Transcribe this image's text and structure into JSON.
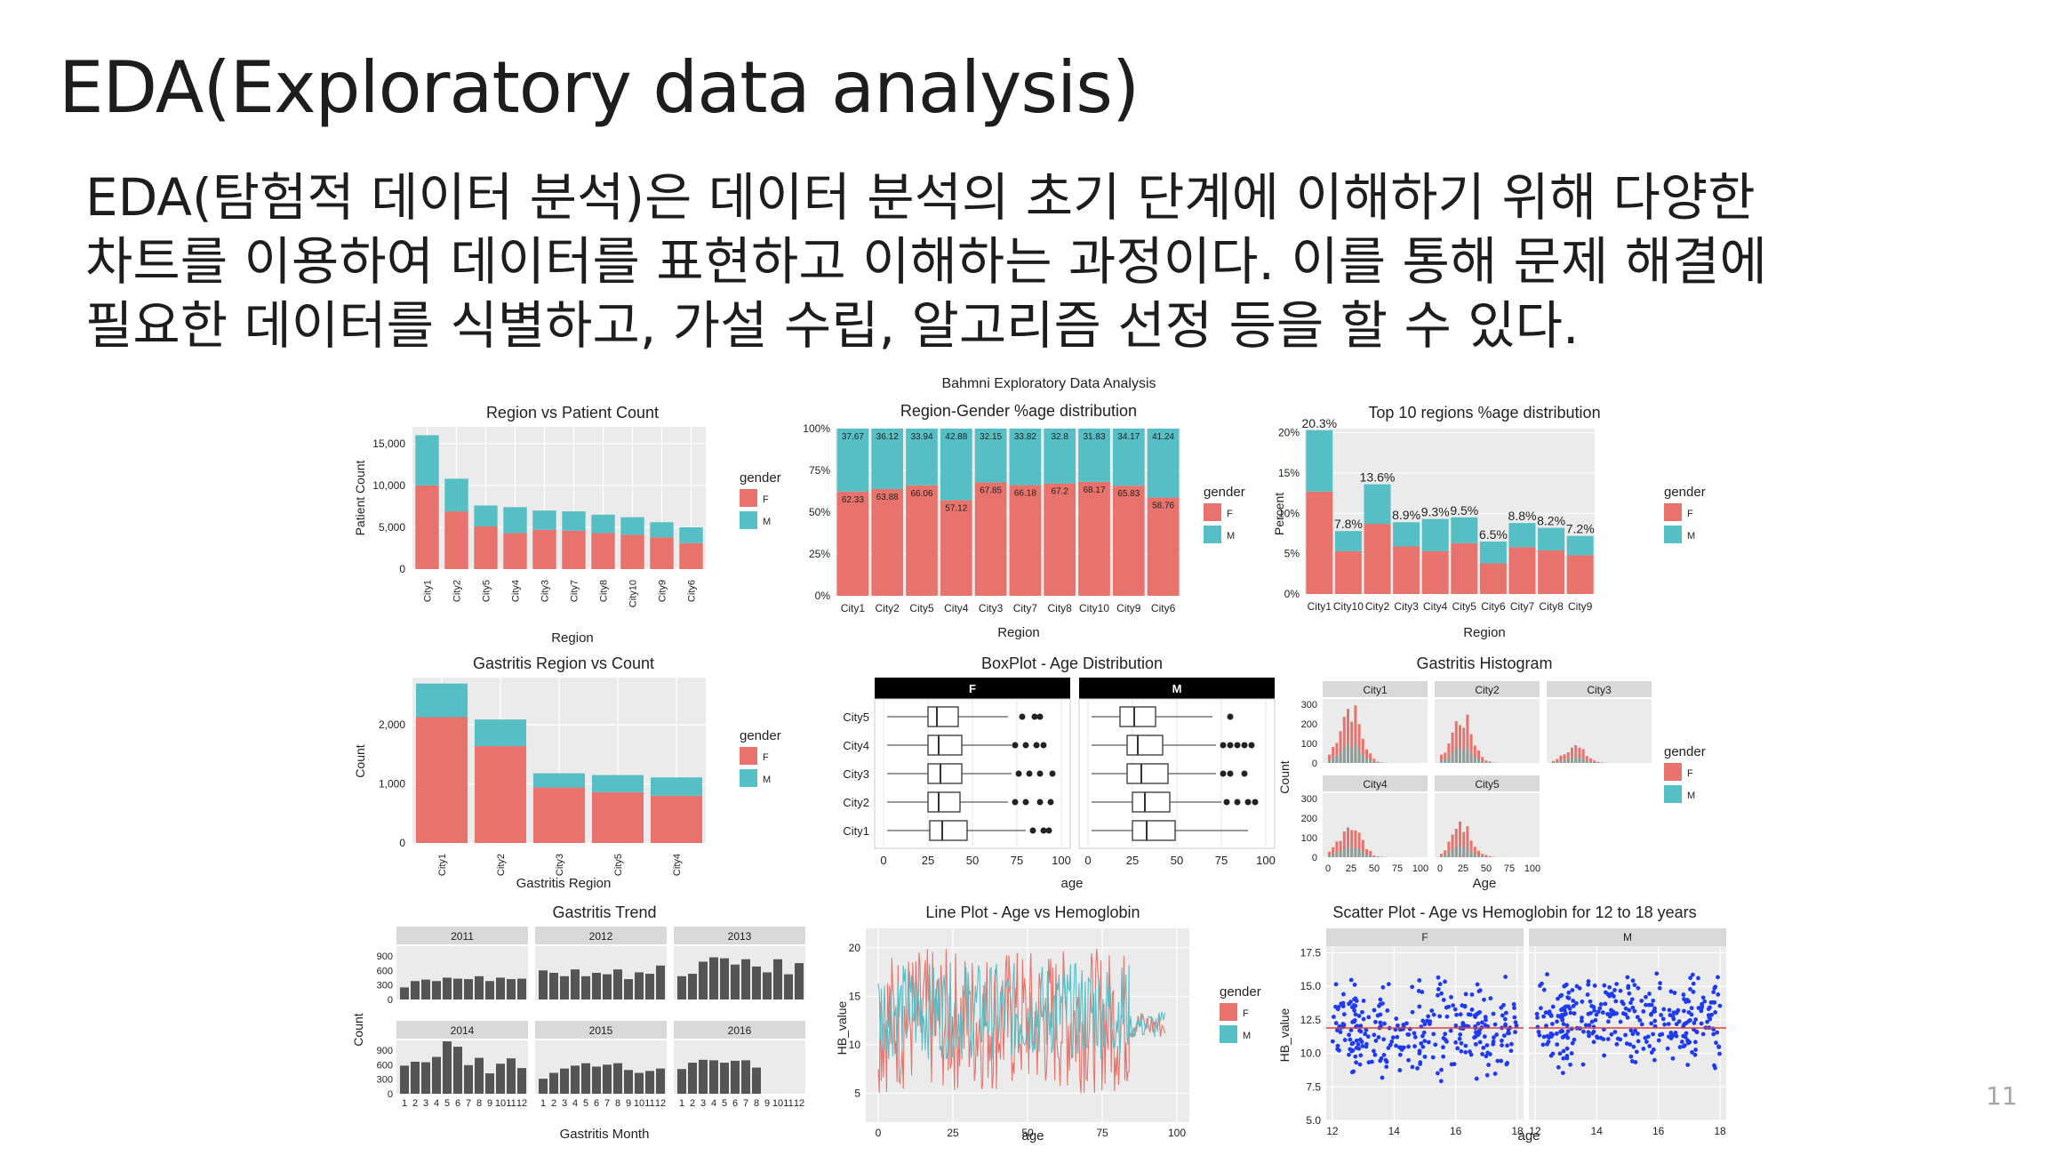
{
  "slide": {
    "title": "EDA(Exploratory data analysis)",
    "body_lines": [
      "EDA(탐험적 데이터 분석)은 데이터 분석의 초기 단계에 이해하기 위해 다양한",
      "차트를 이용하여 데이터를 표현하고 이해하는 과정이다. 이를 통해 문제 해결에",
      "필요한 데이터를 식별하고, 가설 수립, 알고리즘 선정 등을 할 수 있다."
    ],
    "page_number": "11"
  },
  "colors": {
    "F": "#E8736C",
    "M": "#56BFC5",
    "panel": "#EBEBEB",
    "dark_bar": "#555555",
    "scatter": "#1F3BF0",
    "ref_line": "#E04040"
  },
  "figure_header": "Bahmni Exploratory Data Analysis",
  "chart_data": [
    {
      "type": "bar",
      "stacked": true,
      "title": "Region vs Patient Count",
      "xlabel": "Region",
      "ylabel": "Patient Count",
      "categories": [
        "City1",
        "City2",
        "City5",
        "City4",
        "City3",
        "City7",
        "City8",
        "City10",
        "City9",
        "City6"
      ],
      "series": [
        {
          "name": "F",
          "values": [
            10000,
            6900,
            5100,
            4300,
            4700,
            4600,
            4300,
            4100,
            3800,
            3100
          ]
        },
        {
          "name": "M",
          "values": [
            6000,
            3900,
            2500,
            3100,
            2300,
            2300,
            2200,
            2100,
            1800,
            1900
          ]
        }
      ],
      "yticks": [
        "0",
        "5,000",
        "10,000",
        "15,000"
      ],
      "ytick_values": [
        0,
        5000,
        10000,
        15000
      ],
      "ylim": [
        0,
        17000
      ],
      "legend_title": "gender",
      "legend": [
        "F",
        "M"
      ]
    },
    {
      "type": "bar",
      "stacked": true,
      "percent": true,
      "title": "Region-Gender %age distribution",
      "xlabel": "Region",
      "categories": [
        "City1",
        "City2",
        "City5",
        "City4",
        "City3",
        "City7",
        "City8",
        "City10",
        "City9",
        "City6"
      ],
      "series": [
        {
          "name": "F",
          "values": [
            62.33,
            63.88,
            66.06,
            57.12,
            67.85,
            66.18,
            67.2,
            68.17,
            65.83,
            58.76
          ]
        },
        {
          "name": "M",
          "values": [
            37.67,
            36.12,
            33.94,
            42.88,
            32.15,
            33.82,
            32.8,
            31.83,
            34.17,
            41.24
          ]
        }
      ],
      "f_labels": [
        "62.33",
        "63.88",
        "66.06",
        "57.12",
        "67.85",
        "66.18",
        "67.2",
        "68.17",
        "65.83",
        "58.76"
      ],
      "m_labels": [
        "37.67",
        "36.12",
        "33.94",
        "42.88",
        "32.15",
        "33.82",
        "32.8",
        "31.83",
        "34.17",
        "41.24"
      ],
      "yticks": [
        "0%",
        "25%",
        "50%",
        "75%",
        "100%"
      ],
      "ylim": [
        0,
        100
      ],
      "legend_title": "gender",
      "legend": [
        "F",
        "M"
      ]
    },
    {
      "type": "bar",
      "stacked": true,
      "title": "Top 10 regions %age distribution",
      "xlabel": "Region",
      "ylabel": "Percent",
      "categories": [
        "City1",
        "City10",
        "City2",
        "City3",
        "City4",
        "City5",
        "City6",
        "City7",
        "City8",
        "City9"
      ],
      "series": [
        {
          "name": "F",
          "values": [
            12.7,
            5.3,
            8.7,
            5.9,
            5.3,
            6.3,
            3.8,
            5.8,
            5.4,
            4.8
          ]
        },
        {
          "name": "M",
          "values": [
            7.6,
            2.5,
            4.9,
            3.0,
            4.0,
            3.2,
            2.7,
            3.0,
            2.8,
            2.4
          ]
        }
      ],
      "bar_labels": [
        "20.3%",
        "7.8%",
        "13.6%",
        "8.9%",
        "9.3%",
        "9.5%",
        "6.5%",
        "8.8%",
        "8.2%",
        "7.2%"
      ],
      "yticks": [
        "0%",
        "5%",
        "10%",
        "15%",
        "20%"
      ],
      "ylim": [
        0,
        20
      ],
      "legend_title": "gender",
      "legend": [
        "F",
        "M"
      ]
    },
    {
      "type": "bar",
      "stacked": true,
      "title": "Gastritis Region vs Count",
      "xlabel": "Gastritis Region",
      "ylabel": "Count",
      "categories": [
        "City1",
        "City2",
        "City3",
        "City5",
        "City4"
      ],
      "series": [
        {
          "name": "F",
          "values": [
            2130,
            1640,
            940,
            860,
            800
          ]
        },
        {
          "name": "M",
          "values": [
            570,
            450,
            240,
            290,
            310
          ]
        }
      ],
      "yticks": [
        "0",
        "1,000",
        "2,000"
      ],
      "ylim": [
        0,
        2800
      ],
      "legend_title": "gender",
      "legend": [
        "F",
        "M"
      ]
    },
    {
      "type": "boxplot",
      "title": "BoxPlot - Age Distribution",
      "xlabel": "age",
      "facets": [
        "F",
        "M"
      ],
      "categories": [
        "City5",
        "City4",
        "City3",
        "City2",
        "City1"
      ],
      "xticks": [
        "0",
        "25",
        "50",
        "75",
        "100"
      ],
      "boxes": {
        "F": [
          [
            2,
            25,
            30,
            42,
            70,
            [
              78,
              85,
              88
            ]
          ],
          [
            2,
            25,
            31,
            44,
            72,
            [
              74,
              80,
              86,
              90
            ]
          ],
          [
            2,
            25,
            32,
            44,
            72,
            [
              76,
              82,
              88,
              95
            ]
          ],
          [
            2,
            25,
            31,
            43,
            70,
            [
              74,
              80,
              88,
              94
            ]
          ],
          [
            2,
            26,
            33,
            47,
            80,
            [
              84,
              90,
              93
            ]
          ]
        ],
        "M": [
          [
            2,
            18,
            26,
            38,
            70,
            [
              80
            ]
          ],
          [
            2,
            22,
            28,
            42,
            72,
            [
              76,
              80,
              84,
              88,
              92
            ]
          ],
          [
            2,
            22,
            30,
            45,
            72,
            [
              76,
              80,
              88
            ]
          ],
          [
            2,
            25,
            32,
            46,
            75,
            [
              78,
              84,
              90,
              94
            ]
          ],
          [
            2,
            25,
            33,
            49,
            90,
            []
          ]
        ]
      }
    },
    {
      "type": "bar",
      "title": "Gastritis Histogram",
      "xlabel": "Age",
      "ylabel": "Count",
      "facets": [
        "City1",
        "City2",
        "City3",
        "City4",
        "City5"
      ],
      "yticks": [
        "0",
        "100",
        "200",
        "300"
      ],
      "xticks": [
        "0",
        "25",
        "50",
        "75",
        "100"
      ],
      "legend_title": "gender",
      "legend": [
        "F",
        "M"
      ]
    },
    {
      "type": "bar",
      "title": "Gastritis Trend",
      "xlabel": "Gastritis Month",
      "ylabel": "Count",
      "facets": [
        "2011",
        "2012",
        "2013",
        "2014",
        "2015",
        "2016"
      ],
      "months": [
        "1",
        "2",
        "3",
        "4",
        "5",
        "6",
        "7",
        "8",
        "9",
        "10",
        "11",
        "12"
      ],
      "yticks": [
        "0",
        "300",
        "600",
        "900"
      ],
      "ylim": [
        0,
        1100
      ],
      "values": {
        "2011": [
          250,
          380,
          410,
          380,
          450,
          430,
          420,
          480,
          380,
          450,
          420,
          430
        ],
        "2012": [
          600,
          550,
          480,
          620,
          480,
          550,
          520,
          620,
          420,
          560,
          530,
          700
        ],
        "2013": [
          480,
          530,
          780,
          870,
          850,
          720,
          830,
          680,
          560,
          830,
          520,
          750
        ],
        "2014": [
          580,
          660,
          650,
          760,
          1080,
          970,
          590,
          740,
          420,
          620,
          730,
          530
        ],
        "2015": [
          310,
          430,
          520,
          580,
          630,
          560,
          600,
          630,
          490,
          430,
          470,
          520
        ],
        "2016": [
          510,
          640,
          700,
          690,
          640,
          680,
          690,
          540,
          0,
          0,
          0,
          0
        ]
      }
    },
    {
      "type": "line",
      "title": "Line Plot - Age vs Hemoglobin",
      "xlabel": "age",
      "ylabel": "HB_value",
      "xticks": [
        "0",
        "25",
        "50",
        "75",
        "100"
      ],
      "yticks": [
        "5",
        "10",
        "15",
        "20"
      ],
      "ylim": [
        2,
        22
      ],
      "xlim": [
        0,
        100
      ],
      "legend_title": "gender",
      "legend": [
        "F",
        "M"
      ]
    },
    {
      "type": "scatter",
      "title": "Scatter Plot - Age vs Hemoglobin for 12 to 18 years",
      "xlabel": "age",
      "ylabel": "HB_value",
      "facets": [
        "F",
        "M"
      ],
      "xticks": [
        "12",
        "14",
        "16",
        "18"
      ],
      "yticks": [
        "5.0",
        "7.5",
        "10.0",
        "12.5",
        "15.0",
        "17.5"
      ],
      "xlim": [
        11.8,
        18.2
      ],
      "ylim": [
        5,
        18
      ],
      "ref_line_y": 11.9
    }
  ]
}
